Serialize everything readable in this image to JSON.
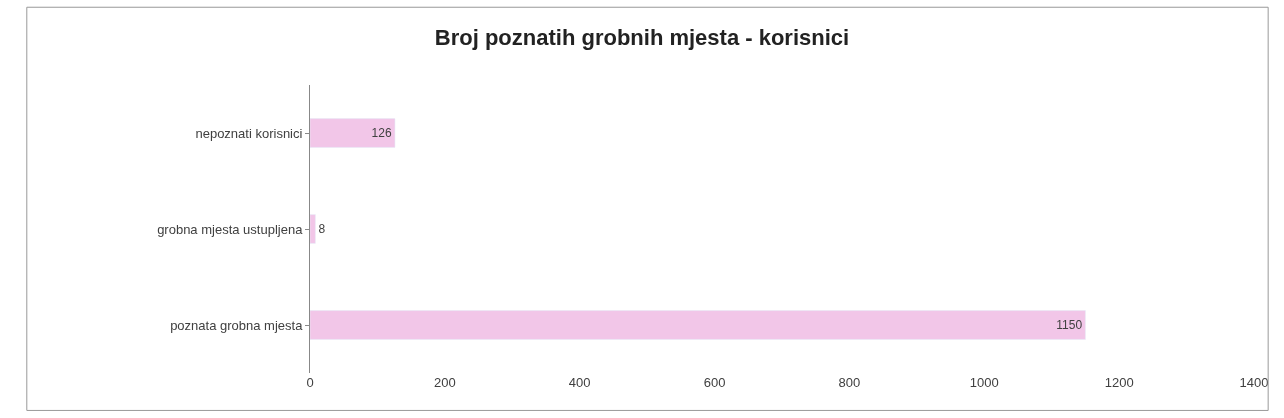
{
  "chart_data": {
    "type": "bar",
    "orientation": "horizontal",
    "title": "Broj poznatih grobnih mjesta - korisnici",
    "categories": [
      "nepoznati korisnici",
      "grobna mjesta ustupljena",
      "poznata grobna mjesta"
    ],
    "values": [
      126,
      8,
      1150
    ],
    "color": "#f2c6e8",
    "data_labels": true,
    "xlim": [
      0,
      1400
    ],
    "xticks": [
      0,
      200,
      400,
      600,
      800,
      1000,
      1200,
      1400
    ]
  }
}
